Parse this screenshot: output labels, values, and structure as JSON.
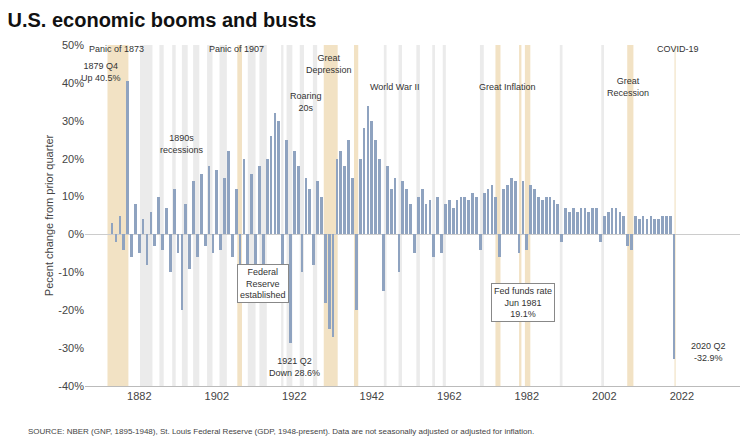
{
  "chart_data": {
    "type": "bar",
    "title": "U.S. economic booms and busts",
    "y_label": "Pecent change from prior quarter",
    "source": "SOURCE: NBER (GNP, 1895-1948), St. Louis Federal Reserve (GDP, 1948-present). Data are not seasonally adjusted or adjusted for inflation.",
    "color": "#8fa3c0",
    "grid": false,
    "xlim": [
      1868,
      2037
    ],
    "xticks": [
      1882,
      1902,
      1922,
      1942,
      1962,
      1982,
      2002,
      2022
    ],
    "ylim": [
      -40,
      50
    ],
    "yticks": [
      {
        "value": -40,
        "label": "-40%"
      },
      {
        "value": -30,
        "label": "-30%"
      },
      {
        "value": -20,
        "label": "-20%"
      },
      {
        "value": -10,
        "label": "-10%"
      },
      {
        "value": 0,
        "label": "0%"
      },
      {
        "value": 10,
        "label": "10%"
      },
      {
        "value": 20,
        "label": "20%"
      },
      {
        "value": 30,
        "label": "30%"
      },
      {
        "value": 40,
        "label": "40%"
      },
      {
        "value": 50,
        "label": "50%"
      }
    ],
    "x": [
      1875,
      1876,
      1877,
      1878,
      1879,
      1880,
      1881,
      1882,
      1883,
      1884,
      1885,
      1886,
      1887,
      1888,
      1889,
      1890,
      1891,
      1892,
      1893,
      1894,
      1895,
      1896,
      1897,
      1898,
      1899,
      1900,
      1901,
      1902,
      1903,
      1904,
      1905,
      1906,
      1907,
      1908,
      1909,
      1910,
      1911,
      1912,
      1913,
      1914,
      1915,
      1916,
      1917,
      1918,
      1919,
      1920,
      1921,
      1922,
      1923,
      1924,
      1925,
      1926,
      1927,
      1928,
      1929,
      1930,
      1931,
      1932,
      1933,
      1934,
      1935,
      1936,
      1937,
      1938,
      1939,
      1940,
      1941,
      1942,
      1943,
      1944,
      1945,
      1946,
      1947,
      1948,
      1949,
      1950,
      1951,
      1952,
      1953,
      1954,
      1955,
      1956,
      1957,
      1958,
      1959,
      1960,
      1961,
      1962,
      1963,
      1964,
      1965,
      1966,
      1967,
      1968,
      1969,
      1970,
      1971,
      1972,
      1973,
      1974,
      1975,
      1976,
      1977,
      1978,
      1979,
      1980,
      1981,
      1982,
      1983,
      1984,
      1985,
      1986,
      1987,
      1988,
      1989,
      1990,
      1991,
      1992,
      1993,
      1994,
      1995,
      1996,
      1997,
      1998,
      1999,
      2000,
      2001,
      2002,
      2003,
      2004,
      2005,
      2006,
      2007,
      2008,
      2009,
      2010,
      2011,
      2012,
      2013,
      2014,
      2015,
      2016,
      2017,
      2018,
      2019,
      2020
    ],
    "values": [
      3,
      -2,
      5,
      -4,
      40.5,
      -6,
      8,
      -5,
      4,
      -8,
      6,
      -3,
      10,
      -4,
      7,
      -10,
      12,
      -5,
      -20,
      8,
      -9,
      14,
      -6,
      16,
      -3,
      18,
      -5,
      17,
      -4,
      15,
      22,
      -6,
      12,
      -10,
      20,
      -8,
      16,
      -10,
      18,
      -15,
      20,
      26,
      32,
      30,
      -12,
      25,
      -28.6,
      22,
      18,
      -10,
      15,
      12,
      -8,
      14,
      10,
      -18,
      -25,
      -27,
      20,
      22,
      18,
      25,
      15,
      -20,
      20,
      28,
      34,
      30,
      25,
      20,
      -15,
      18,
      12,
      15,
      -10,
      14,
      12,
      8,
      -5,
      10,
      12,
      8,
      9,
      -6,
      10,
      -5,
      8,
      9,
      7,
      9,
      10,
      10,
      9,
      11,
      10,
      -4,
      11,
      12,
      13,
      10,
      -6,
      12,
      13,
      15,
      14,
      -5,
      14,
      -4,
      13,
      12,
      10,
      9,
      10,
      10,
      9,
      8,
      -2,
      7,
      6,
      7,
      6,
      7,
      7,
      6,
      7,
      7,
      -2,
      5,
      6,
      7,
      7,
      6,
      5,
      -3,
      -4,
      5,
      4,
      5,
      4,
      5,
      4,
      4,
      5,
      5,
      5,
      -32.9
    ],
    "shaded_periods": [
      {
        "start": 1873.8,
        "end": 1879.2,
        "color": "#f2e2c4"
      },
      {
        "start": 1882.2,
        "end": 1885.4,
        "color": "#ebebeb"
      },
      {
        "start": 1887.2,
        "end": 1888.3,
        "color": "#ebebeb"
      },
      {
        "start": 1890.5,
        "end": 1891.4,
        "color": "#ebebeb"
      },
      {
        "start": 1893.0,
        "end": 1894.5,
        "color": "#ebebeb"
      },
      {
        "start": 1895.9,
        "end": 1897.5,
        "color": "#ebebeb"
      },
      {
        "start": 1899.5,
        "end": 1900.9,
        "color": "#ebebeb"
      },
      {
        "start": 1902.7,
        "end": 1904.6,
        "color": "#ebebeb"
      },
      {
        "start": 1907.3,
        "end": 1908.5,
        "color": "#f2e2c4"
      },
      {
        "start": 1910.0,
        "end": 1912.0,
        "color": "#ebebeb"
      },
      {
        "start": 1913.0,
        "end": 1914.9,
        "color": "#ebebeb"
      },
      {
        "start": 1918.6,
        "end": 1919.2,
        "color": "#ebebeb"
      },
      {
        "start": 1920.0,
        "end": 1921.5,
        "color": "#ebebeb"
      },
      {
        "start": 1923.4,
        "end": 1924.5,
        "color": "#ebebeb"
      },
      {
        "start": 1926.8,
        "end": 1927.9,
        "color": "#ebebeb"
      },
      {
        "start": 1929.6,
        "end": 1933.2,
        "color": "#f2e2c4"
      },
      {
        "start": 1937.4,
        "end": 1938.5,
        "color": "#f2e2c4"
      },
      {
        "start": 1945.1,
        "end": 1945.8,
        "color": "#ebebeb"
      },
      {
        "start": 1948.9,
        "end": 1949.8,
        "color": "#ebebeb"
      },
      {
        "start": 1953.5,
        "end": 1954.4,
        "color": "#ebebeb"
      },
      {
        "start": 1957.6,
        "end": 1958.3,
        "color": "#ebebeb"
      },
      {
        "start": 1960.3,
        "end": 1961.1,
        "color": "#ebebeb"
      },
      {
        "start": 1969.9,
        "end": 1970.9,
        "color": "#ebebeb"
      },
      {
        "start": 1973.9,
        "end": 1975.2,
        "color": "#f2e2c4"
      },
      {
        "start": 1980.0,
        "end": 1980.6,
        "color": "#f2e2c4"
      },
      {
        "start": 1981.5,
        "end": 1982.9,
        "color": "#f2e2c4"
      },
      {
        "start": 1990.5,
        "end": 1991.2,
        "color": "#ebebeb"
      },
      {
        "start": 2001.2,
        "end": 2001.9,
        "color": "#ebebeb"
      },
      {
        "start": 2007.9,
        "end": 2009.5,
        "color": "#f2e2c4"
      },
      {
        "start": 2020.1,
        "end": 2020.4,
        "color": "#f2e2c4"
      }
    ],
    "annotations": [
      {
        "text": "Panic of 1873",
        "x": 1876,
        "y": 49
      },
      {
        "text": "1879 Q4\nUp 40.5%",
        "x": 1872,
        "y": 43
      },
      {
        "text": "1890s\nrecessions",
        "x": 1893,
        "y": 24
      },
      {
        "text": "Panic of 1907",
        "x": 1907,
        "y": 49
      },
      {
        "text": "Roaring\n20s",
        "x": 1925,
        "y": 35
      },
      {
        "text": "Great\nDepression",
        "x": 1931,
        "y": 45
      },
      {
        "text": "World War II",
        "x": 1948,
        "y": 39
      },
      {
        "text": "Federal\nReserve\nestablished",
        "x": 1914,
        "y": -13,
        "color": "#ffffff"
      },
      {
        "text": "1921 Q2\nDown 28.6%",
        "x": 1922,
        "y": -35
      },
      {
        "text": "Great Inflation",
        "x": 1977,
        "y": 39
      },
      {
        "text": "Fed funds rate\nJun 1981\n19.1%",
        "x": 1981,
        "y": -18,
        "color": "#ffffff"
      },
      {
        "text": "Great\nRecession",
        "x": 2008,
        "y": 39
      },
      {
        "text": "COVID-19",
        "x": 2021,
        "y": 49
      },
      {
        "text": "2020 Q2\n-32.9%",
        "x": 2029,
        "y": -31
      }
    ]
  }
}
